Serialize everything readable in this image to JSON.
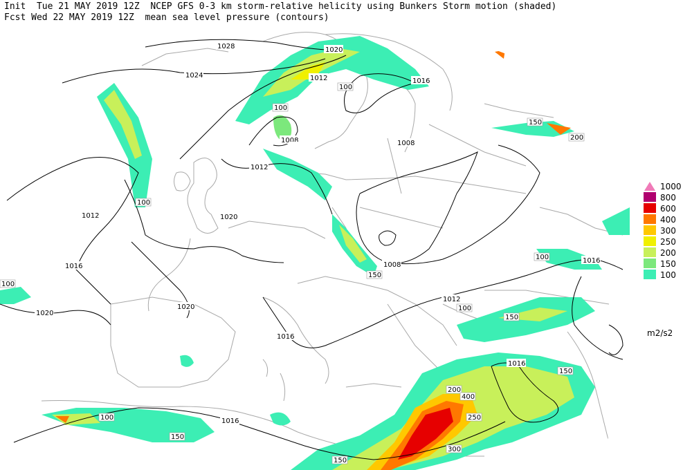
{
  "header": {
    "line1": "Init  Tue 21 MAY 2019 12Z  NCEP GFS 0-3 km storm-relative helicity using Bunkers Storm motion (shaded)",
    "line2": "Fcst Wed 22 MAY 2019 12Z  mean sea level pressure (contours)"
  },
  "legend": {
    "levels": [
      {
        "label": "1000",
        "color": "#f07ab8"
      },
      {
        "label": "800",
        "color": "#b0006e"
      },
      {
        "label": "600",
        "color": "#e60000"
      },
      {
        "label": "400",
        "color": "#ff7800"
      },
      {
        "label": "300",
        "color": "#ffc800"
      },
      {
        "label": "250",
        "color": "#f0f000"
      },
      {
        "label": "200",
        "color": "#c8f05a"
      },
      {
        "label": "150",
        "color": "#7ce87c"
      },
      {
        "label": "100",
        "color": "#3ceeb4"
      }
    ],
    "units": "m2/s2"
  },
  "isobars": [
    "1028",
    "1024",
    "1020",
    "1016",
    "1012",
    "1008",
    "1020",
    "1016",
    "1020",
    "1020",
    "1016",
    "1012",
    "1016",
    "1016",
    "1016",
    "1008",
    "1012",
    "1008",
    "1008",
    "1012",
    "1016"
  ],
  "helicity_labels": [
    "100",
    "150",
    "200",
    "250",
    "300",
    "400",
    "100",
    "150",
    "100",
    "150",
    "200",
    "150",
    "100",
    "100",
    "150",
    "100",
    "150",
    "100"
  ]
}
